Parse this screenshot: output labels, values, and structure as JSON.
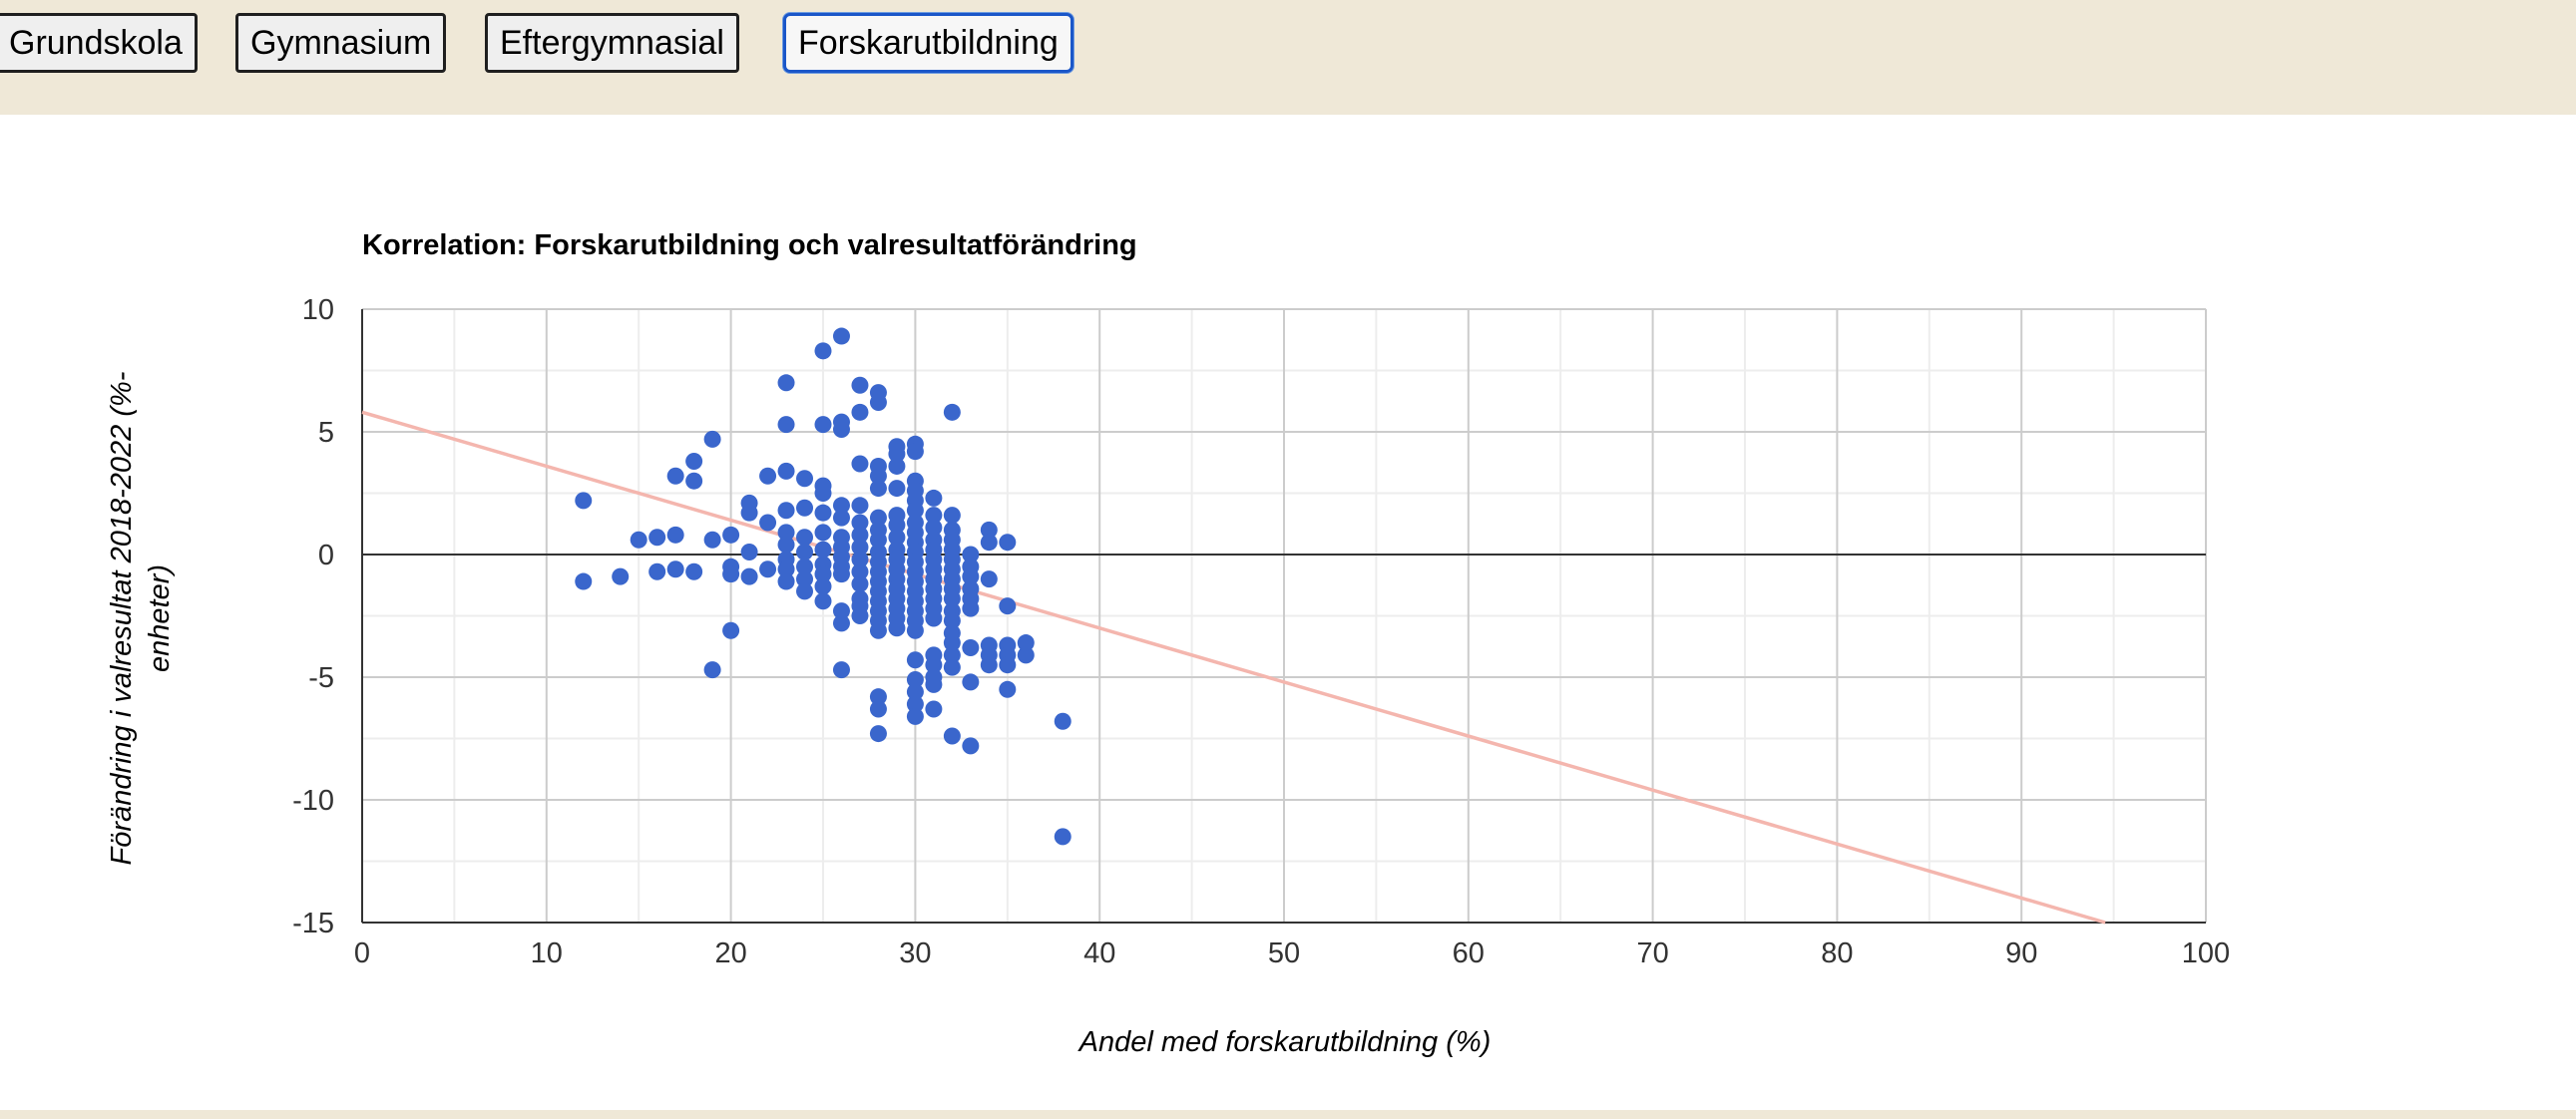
{
  "tabs": [
    {
      "label": "Grundskola",
      "active": false
    },
    {
      "label": "Gymnasium",
      "active": false
    },
    {
      "label": "Eftergymnasial",
      "active": false
    },
    {
      "label": "Forskarutbildning",
      "active": true
    }
  ],
  "colors": {
    "header_bg": "#efe8d7",
    "point": "#3a66cc",
    "trendline": "#f4b6ae",
    "active_tab_border": "#1a56c8"
  },
  "chart_data": {
    "type": "scatter",
    "title": "Korrelation: Forskarutbildning och valresultatförändring",
    "xlabel": "Andel med forskarutbildning (%)",
    "ylabel": "Förändring i valresultat 2018-2022 (%-enheter)",
    "ylabel_lines": [
      "Förändring i valresultat 2018-2022 (%-",
      "enheter)"
    ],
    "xlim": [
      0,
      100
    ],
    "ylim": [
      -15,
      10
    ],
    "xticks": [
      0,
      10,
      20,
      30,
      40,
      50,
      60,
      70,
      80,
      90,
      100
    ],
    "yticks": [
      10,
      5,
      0,
      -5,
      -10,
      -15
    ],
    "grid": true,
    "legend": "none",
    "trendline": {
      "type": "linear",
      "intercept": 5.8,
      "slope": -0.22
    },
    "points": [
      [
        12,
        2.2
      ],
      [
        12,
        -1.1
      ],
      [
        14,
        -0.9
      ],
      [
        15,
        0.6
      ],
      [
        16,
        0.7
      ],
      [
        16,
        -0.7
      ],
      [
        17,
        3.2
      ],
      [
        17,
        0.8
      ],
      [
        17,
        -0.6
      ],
      [
        18,
        3.8
      ],
      [
        18,
        3.0
      ],
      [
        18,
        -0.7
      ],
      [
        19,
        4.7
      ],
      [
        19,
        0.6
      ],
      [
        19,
        -4.7
      ],
      [
        20,
        0.8
      ],
      [
        20,
        -0.5
      ],
      [
        20,
        -0.8
      ],
      [
        20,
        -3.1
      ],
      [
        21,
        2.1
      ],
      [
        21,
        1.7
      ],
      [
        21,
        0.1
      ],
      [
        21,
        -0.9
      ],
      [
        22,
        3.2
      ],
      [
        22,
        1.3
      ],
      [
        22,
        -0.6
      ],
      [
        23,
        7.0
      ],
      [
        23,
        5.3
      ],
      [
        23,
        3.4
      ],
      [
        23,
        1.8
      ],
      [
        23,
        0.9
      ],
      [
        23,
        0.4
      ],
      [
        23,
        -0.2
      ],
      [
        23,
        -0.6
      ],
      [
        23,
        -1.1
      ],
      [
        24,
        3.1
      ],
      [
        24,
        1.9
      ],
      [
        24,
        0.7
      ],
      [
        24,
        0.1
      ],
      [
        24,
        -0.5
      ],
      [
        24,
        -1.0
      ],
      [
        24,
        -1.5
      ],
      [
        25,
        8.3
      ],
      [
        25,
        5.3
      ],
      [
        25,
        2.8
      ],
      [
        25,
        2.5
      ],
      [
        25,
        1.7
      ],
      [
        25,
        0.9
      ],
      [
        25,
        0.2
      ],
      [
        25,
        -0.4
      ],
      [
        25,
        -0.8
      ],
      [
        25,
        -1.3
      ],
      [
        25,
        -1.9
      ],
      [
        26,
        8.9
      ],
      [
        26,
        5.4
      ],
      [
        26,
        5.1
      ],
      [
        26,
        2.0
      ],
      [
        26,
        1.5
      ],
      [
        26,
        0.7
      ],
      [
        26,
        0.3
      ],
      [
        26,
        -0.1
      ],
      [
        26,
        -0.5
      ],
      [
        26,
        -0.8
      ],
      [
        26,
        -2.3
      ],
      [
        26,
        -2.8
      ],
      [
        26,
        -4.7
      ],
      [
        27,
        6.9
      ],
      [
        27,
        5.8
      ],
      [
        27,
        3.7
      ],
      [
        27,
        2.0
      ],
      [
        27,
        1.3
      ],
      [
        27,
        0.8
      ],
      [
        27,
        0.3
      ],
      [
        27,
        -0.2
      ],
      [
        27,
        -0.7
      ],
      [
        27,
        -1.2
      ],
      [
        27,
        -1.8
      ],
      [
        27,
        -2.1
      ],
      [
        27,
        -2.5
      ],
      [
        28,
        6.6
      ],
      [
        28,
        6.2
      ],
      [
        28,
        3.6
      ],
      [
        28,
        3.2
      ],
      [
        28,
        2.7
      ],
      [
        28,
        1.5
      ],
      [
        28,
        1.0
      ],
      [
        28,
        0.6
      ],
      [
        28,
        0.1
      ],
      [
        28,
        -0.3
      ],
      [
        28,
        -0.7
      ],
      [
        28,
        -1.1
      ],
      [
        28,
        -1.5
      ],
      [
        28,
        -1.9
      ],
      [
        28,
        -2.3
      ],
      [
        28,
        -2.7
      ],
      [
        28,
        -3.1
      ],
      [
        28,
        -5.8
      ],
      [
        28,
        -6.3
      ],
      [
        28,
        -7.3
      ],
      [
        29,
        4.4
      ],
      [
        29,
        4.1
      ],
      [
        29,
        3.6
      ],
      [
        29,
        2.7
      ],
      [
        29,
        1.6
      ],
      [
        29,
        1.2
      ],
      [
        29,
        0.7
      ],
      [
        29,
        0.2
      ],
      [
        29,
        -0.2
      ],
      [
        29,
        -0.6
      ],
      [
        29,
        -1.0
      ],
      [
        29,
        -1.4
      ],
      [
        29,
        -1.8
      ],
      [
        29,
        -2.2
      ],
      [
        29,
        -2.6
      ],
      [
        29,
        -3.0
      ],
      [
        30,
        4.5
      ],
      [
        30,
        4.2
      ],
      [
        30,
        3.0
      ],
      [
        30,
        2.6
      ],
      [
        30,
        2.2
      ],
      [
        30,
        1.8
      ],
      [
        30,
        1.3
      ],
      [
        30,
        0.9
      ],
      [
        30,
        0.5
      ],
      [
        30,
        0.1
      ],
      [
        30,
        -0.3
      ],
      [
        30,
        -0.7
      ],
      [
        30,
        -1.1
      ],
      [
        30,
        -1.5
      ],
      [
        30,
        -1.9
      ],
      [
        30,
        -2.3
      ],
      [
        30,
        -2.7
      ],
      [
        30,
        -3.1
      ],
      [
        30,
        -4.3
      ],
      [
        30,
        -5.1
      ],
      [
        30,
        -5.6
      ],
      [
        30,
        -6.1
      ],
      [
        30,
        -6.6
      ],
      [
        31,
        2.3
      ],
      [
        31,
        1.6
      ],
      [
        31,
        1.1
      ],
      [
        31,
        0.6
      ],
      [
        31,
        0.2
      ],
      [
        31,
        -0.2
      ],
      [
        31,
        -0.6
      ],
      [
        31,
        -1.0
      ],
      [
        31,
        -1.4
      ],
      [
        31,
        -1.8
      ],
      [
        31,
        -2.2
      ],
      [
        31,
        -2.6
      ],
      [
        31,
        -4.1
      ],
      [
        31,
        -4.5
      ],
      [
        31,
        -5.0
      ],
      [
        31,
        -5.3
      ],
      [
        31,
        -6.3
      ],
      [
        32,
        5.8
      ],
      [
        32,
        1.6
      ],
      [
        32,
        1.0
      ],
      [
        32,
        0.6
      ],
      [
        32,
        0.2
      ],
      [
        32,
        -0.2
      ],
      [
        32,
        -0.6
      ],
      [
        32,
        -1.0
      ],
      [
        32,
        -1.4
      ],
      [
        32,
        -1.8
      ],
      [
        32,
        -2.3
      ],
      [
        32,
        -2.7
      ],
      [
        32,
        -3.2
      ],
      [
        32,
        -3.6
      ],
      [
        32,
        -4.1
      ],
      [
        32,
        -4.6
      ],
      [
        32,
        -7.4
      ],
      [
        33,
        0.0
      ],
      [
        33,
        -0.5
      ],
      [
        33,
        -0.9
      ],
      [
        33,
        -1.4
      ],
      [
        33,
        -1.8
      ],
      [
        33,
        -2.2
      ],
      [
        33,
        -3.8
      ],
      [
        33,
        -5.2
      ],
      [
        33,
        -7.8
      ],
      [
        34,
        1.0
      ],
      [
        34,
        0.5
      ],
      [
        34,
        -1.0
      ],
      [
        34,
        -3.7
      ],
      [
        34,
        -4.1
      ],
      [
        34,
        -4.5
      ],
      [
        35,
        0.5
      ],
      [
        35,
        -2.1
      ],
      [
        35,
        -3.7
      ],
      [
        35,
        -4.1
      ],
      [
        35,
        -4.5
      ],
      [
        35,
        -5.5
      ],
      [
        36,
        -3.6
      ],
      [
        36,
        -4.1
      ],
      [
        38,
        -6.8
      ],
      [
        38,
        -11.5
      ]
    ]
  }
}
